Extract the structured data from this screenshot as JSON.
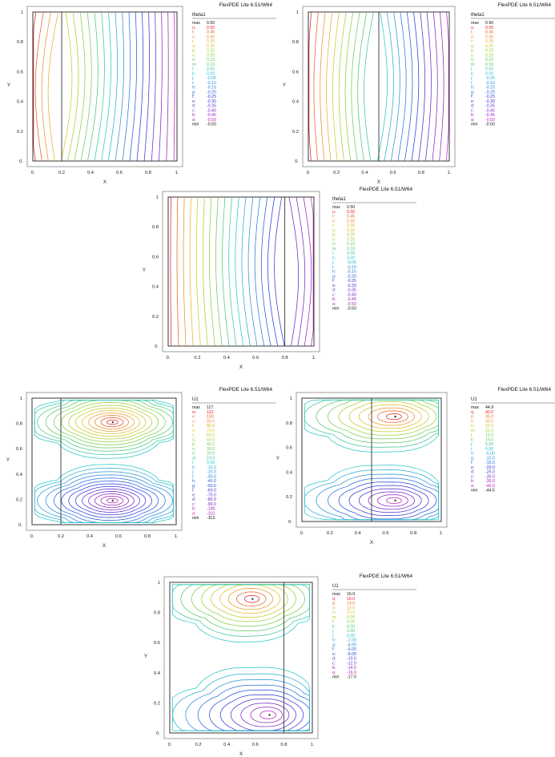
{
  "chart_data": [
    {
      "type": "contour",
      "header": "FlexPDE Lite 6.51/W64",
      "legend_title": "theta1",
      "xlabel": "X",
      "ylabel": "Y",
      "xlim": [
        0,
        1
      ],
      "ylim": [
        0,
        1
      ],
      "xticks": [
        "0.",
        "0.2",
        "0.4",
        "0.6",
        "0.8",
        "1."
      ],
      "yticks": [
        "0.",
        "0.2",
        "0.4",
        "0.6",
        "0.8",
        "1"
      ],
      "divider_x": 0.2,
      "max_label": "max",
      "max_value": "0.50",
      "min_label": "min",
      "min_value": "-0.50",
      "levels": [
        {
          "letter": "u:",
          "value": "0.50"
        },
        {
          "letter": "t:",
          "value": "0.45"
        },
        {
          "letter": "s:",
          "value": "0.40"
        },
        {
          "letter": "r:",
          "value": "0.35"
        },
        {
          "letter": "q:",
          "value": "0.30"
        },
        {
          "letter": "p:",
          "value": "0.25"
        },
        {
          "letter": "o:",
          "value": "0.20"
        },
        {
          "letter": "n:",
          "value": "0.15"
        },
        {
          "letter": "m:",
          "value": "0.10"
        },
        {
          "letter": "l:",
          "value": "0.05"
        },
        {
          "letter": "k:",
          "value": "0.00"
        },
        {
          "letter": "j:",
          "value": "-0.05"
        },
        {
          "letter": "i:",
          "value": "-0.10"
        },
        {
          "letter": "h:",
          "value": "-0.15"
        },
        {
          "letter": "g:",
          "value": "-0.20"
        },
        {
          "letter": "f:",
          "value": "-0.25"
        },
        {
          "letter": "e:",
          "value": "-0.30"
        },
        {
          "letter": "d:",
          "value": "-0.35"
        },
        {
          "letter": "c:",
          "value": "-0.40"
        },
        {
          "letter": "b:",
          "value": "-0.45"
        },
        {
          "letter": "a:",
          "value": "-0.50"
        }
      ],
      "field": "theta",
      "divider_frac": 0.2
    },
    {
      "type": "contour",
      "header": "FlexPDE Lite 6.51/W64",
      "legend_title": "theta1",
      "xlabel": "X",
      "ylabel": "Y",
      "xlim": [
        0,
        1
      ],
      "ylim": [
        0,
        1
      ],
      "xticks": [
        "0.",
        "0.2",
        "0.4",
        "0.6",
        "0.8",
        "1."
      ],
      "yticks": [
        "0.",
        "0.2",
        "0.4",
        "0.6",
        "0.8",
        "1"
      ],
      "divider_x": 0.5,
      "max_label": "max",
      "max_value": "0.50",
      "min_label": "min",
      "min_value": "-0.50",
      "levels": [
        {
          "letter": "u:",
          "value": "0.50"
        },
        {
          "letter": "t:",
          "value": "0.45"
        },
        {
          "letter": "s:",
          "value": "0.40"
        },
        {
          "letter": "r:",
          "value": "0.35"
        },
        {
          "letter": "q:",
          "value": "0.30"
        },
        {
          "letter": "p:",
          "value": "0.25"
        },
        {
          "letter": "o:",
          "value": "0.20"
        },
        {
          "letter": "n:",
          "value": "0.15"
        },
        {
          "letter": "m:",
          "value": "0.10"
        },
        {
          "letter": "l:",
          "value": "0.05"
        },
        {
          "letter": "k:",
          "value": "0.00"
        },
        {
          "letter": "j:",
          "value": "-0.05"
        },
        {
          "letter": "i:",
          "value": "-0.10"
        },
        {
          "letter": "h:",
          "value": "-0.15"
        },
        {
          "letter": "g:",
          "value": "-0.20"
        },
        {
          "letter": "f:",
          "value": "-0.25"
        },
        {
          "letter": "e:",
          "value": "-0.30"
        },
        {
          "letter": "d:",
          "value": "-0.35"
        },
        {
          "letter": "c:",
          "value": "-0.40"
        },
        {
          "letter": "b:",
          "value": "-0.45"
        },
        {
          "letter": "a:",
          "value": "-0.50"
        }
      ],
      "field": "theta",
      "divider_frac": 0.5
    },
    {
      "type": "contour",
      "header": "FlexPDE Lite 6.51/W64",
      "legend_title": "theta1",
      "xlabel": "X",
      "ylabel": "Y",
      "xlim": [
        0,
        1
      ],
      "ylim": [
        0,
        1
      ],
      "xticks": [
        "0.",
        "0.2",
        "0.4",
        "0.6",
        "0.8",
        "1."
      ],
      "yticks": [
        "0.",
        "0.2",
        "0.4",
        "0.6",
        "0.8",
        "1"
      ],
      "divider_x": 0.8,
      "max_label": "max",
      "max_value": "0.50",
      "min_label": "min",
      "min_value": "-0.50",
      "levels": [
        {
          "letter": "u:",
          "value": "0.50"
        },
        {
          "letter": "t:",
          "value": "0.45"
        },
        {
          "letter": "s:",
          "value": "0.40"
        },
        {
          "letter": "r:",
          "value": "0.35"
        },
        {
          "letter": "q:",
          "value": "0.30"
        },
        {
          "letter": "p:",
          "value": "0.25"
        },
        {
          "letter": "o:",
          "value": "0.20"
        },
        {
          "letter": "n:",
          "value": "0.15"
        },
        {
          "letter": "m:",
          "value": "0.10"
        },
        {
          "letter": "l:",
          "value": "0.05"
        },
        {
          "letter": "k:",
          "value": "0.00"
        },
        {
          "letter": "j:",
          "value": "-0.05"
        },
        {
          "letter": "i:",
          "value": "-0.10"
        },
        {
          "letter": "h:",
          "value": "-0.15"
        },
        {
          "letter": "g:",
          "value": "-0.20"
        },
        {
          "letter": "f:",
          "value": "-0.25"
        },
        {
          "letter": "e:",
          "value": "-0.30"
        },
        {
          "letter": "d:",
          "value": "-0.35"
        },
        {
          "letter": "c:",
          "value": "-0.40"
        },
        {
          "letter": "b:",
          "value": "-0.45"
        },
        {
          "letter": "a:",
          "value": "-0.50"
        }
      ],
      "field": "theta",
      "divider_frac": 0.8
    },
    {
      "type": "contour",
      "header": "FlexPDE Lite 6.51/W64",
      "legend_title": "U1",
      "xlabel": "X",
      "ylabel": "Y",
      "xlim": [
        0,
        1
      ],
      "ylim": [
        0,
        1
      ],
      "xticks": [
        "0.",
        "0.2",
        "0.4",
        "0.6",
        "0.8",
        "1."
      ],
      "yticks": [
        "0.",
        "0.2",
        "0.4",
        "0.6",
        "0.8",
        "1"
      ],
      "divider_x": 0.2,
      "max_label": "max",
      "max_value": "117.",
      "min_label": "min",
      "min_value": "-113.",
      "levels": [
        {
          "letter": "w:",
          "value": "110."
        },
        {
          "letter": "v:",
          "value": "100."
        },
        {
          "letter": "u:",
          "value": "90.0"
        },
        {
          "letter": "t:",
          "value": "80.0"
        },
        {
          "letter": "s:",
          "value": "70.0"
        },
        {
          "letter": "r:",
          "value": "60.0"
        },
        {
          "letter": "q:",
          "value": "50.0"
        },
        {
          "letter": "p:",
          "value": "40.0"
        },
        {
          "letter": "o:",
          "value": "30.0"
        },
        {
          "letter": "n:",
          "value": "20.0"
        },
        {
          "letter": "m:",
          "value": "10.0"
        },
        {
          "letter": "l:",
          "value": "0.00"
        },
        {
          "letter": "k:",
          "value": "-10.0"
        },
        {
          "letter": "j:",
          "value": "-20.0"
        },
        {
          "letter": "i:",
          "value": "-30.0"
        },
        {
          "letter": "h:",
          "value": "-40.0"
        },
        {
          "letter": "g:",
          "value": "-50.0"
        },
        {
          "letter": "f:",
          "value": "-60.0"
        },
        {
          "letter": "e:",
          "value": "-70.0"
        },
        {
          "letter": "d:",
          "value": "-80.0"
        },
        {
          "letter": "c:",
          "value": "-90.0"
        },
        {
          "letter": "b:",
          "value": "-100."
        },
        {
          "letter": "a:",
          "value": "-110."
        }
      ],
      "field": "cells",
      "divider_frac": 0.2,
      "centers": [
        {
          "x": 0.56,
          "y": 0.81
        },
        {
          "x": 0.56,
          "y": 0.19
        }
      ]
    },
    {
      "type": "contour",
      "header": "FlexPDE Lite 6.51/W64",
      "legend_title": "U1",
      "xlabel": "X",
      "ylabel": "Y",
      "xlim": [
        0,
        1
      ],
      "ylim": [
        0,
        1
      ],
      "xticks": [
        "0.",
        "0.2",
        "0.4",
        "0.6",
        "0.8",
        "1."
      ],
      "yticks": [
        "0.",
        "0.2",
        "0.4",
        "0.6",
        "0.8",
        "1"
      ],
      "divider_x": 0.5,
      "max_label": "max",
      "max_value": "44.9",
      "min_label": "min",
      "min_value": "-44.5",
      "levels": [
        {
          "letter": "q:",
          "value": "40.0"
        },
        {
          "letter": "p:",
          "value": "35.0"
        },
        {
          "letter": "o:",
          "value": "30.0"
        },
        {
          "letter": "n:",
          "value": "25.0"
        },
        {
          "letter": "m:",
          "value": "20.0"
        },
        {
          "letter": "l:",
          "value": "15.0"
        },
        {
          "letter": "k:",
          "value": "10.0"
        },
        {
          "letter": "j:",
          "value": "5.00"
        },
        {
          "letter": "i:",
          "value": "0.00"
        },
        {
          "letter": "h:",
          "value": "-5.00"
        },
        {
          "letter": "g:",
          "value": "-10.0"
        },
        {
          "letter": "f:",
          "value": "-15.0"
        },
        {
          "letter": "e:",
          "value": "-20.0"
        },
        {
          "letter": "d:",
          "value": "-25.0"
        },
        {
          "letter": "c:",
          "value": "-30.0"
        },
        {
          "letter": "b:",
          "value": "-35.0"
        },
        {
          "letter": "a:",
          "value": "-40.0"
        }
      ],
      "field": "cells",
      "divider_frac": 0.5,
      "centers": [
        {
          "x": 0.67,
          "y": 0.85
        },
        {
          "x": 0.67,
          "y": 0.17
        }
      ]
    },
    {
      "type": "contour",
      "header": "FlexPDE Lite 6.51/W64",
      "legend_title": "U1",
      "xlabel": "X",
      "ylabel": "Y",
      "xlim": [
        0,
        1
      ],
      "ylim": [
        0,
        1
      ],
      "xticks": [
        "0.",
        "0.2",
        "0.4",
        "0.6",
        "0.8",
        "1."
      ],
      "yticks": [
        "0.",
        "0.2",
        "0.4",
        "0.6",
        "0.8",
        "1"
      ],
      "divider_x": 0.8,
      "max_label": "max",
      "max_value": "16.0",
      "min_label": "min",
      "min_value": "-17.0",
      "levels": [
        {
          "letter": "q:",
          "value": "16.0"
        },
        {
          "letter": "p:",
          "value": "14.0"
        },
        {
          "letter": "o:",
          "value": "12.0"
        },
        {
          "letter": "n:",
          "value": "10.0"
        },
        {
          "letter": "m:",
          "value": "8.00"
        },
        {
          "letter": "l:",
          "value": "6.00"
        },
        {
          "letter": "k:",
          "value": "4.00"
        },
        {
          "letter": "j:",
          "value": "2.00"
        },
        {
          "letter": "i:",
          "value": "0.00"
        },
        {
          "letter": "h:",
          "value": "-2.00"
        },
        {
          "letter": "g:",
          "value": "-4.00"
        },
        {
          "letter": "f:",
          "value": "-6.00"
        },
        {
          "letter": "e:",
          "value": "-8.00"
        },
        {
          "letter": "d:",
          "value": "-10.0"
        },
        {
          "letter": "c:",
          "value": "-12.0"
        },
        {
          "letter": "b:",
          "value": "-14.0"
        },
        {
          "letter": "a:",
          "value": "-16.0"
        }
      ],
      "field": "cells",
      "divider_frac": 0.8,
      "centers": [
        {
          "x": 0.58,
          "y": 0.89
        },
        {
          "x": 0.7,
          "y": 0.12
        }
      ]
    }
  ]
}
